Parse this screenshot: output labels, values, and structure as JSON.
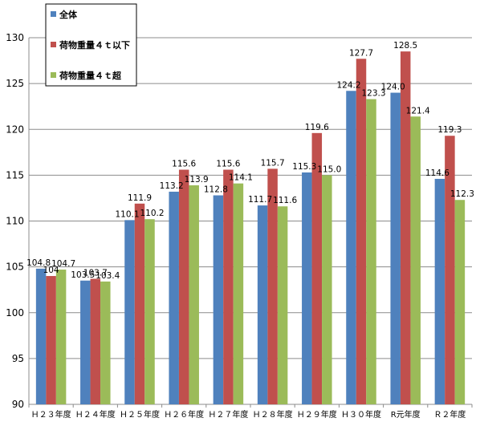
{
  "chart_data": {
    "type": "bar",
    "title": "",
    "xlabel": "",
    "ylabel": "",
    "ylim": [
      90,
      130
    ],
    "yticks": [
      90,
      95,
      100,
      105,
      110,
      115,
      120,
      125,
      130
    ],
    "grid": true,
    "legend_position": "top-left",
    "categories": [
      "Ｈ２３年度",
      "Ｈ２４年度",
      "Ｈ２５年度",
      "Ｈ２６年度",
      "Ｈ２７年度",
      "Ｈ２８年度",
      "Ｈ２９年度",
      "Ｈ３０年度",
      "R元年度",
      "Ｒ２年度"
    ],
    "series": [
      {
        "name": "全体",
        "color": "#4f81bd",
        "values": [
          104.8,
          103.5,
          110.1,
          113.2,
          112.8,
          111.7,
          115.3,
          124.2,
          124.0,
          114.6
        ]
      },
      {
        "name": "荷物重量４ｔ以下",
        "color": "#c0504d",
        "values": [
          104.0,
          103.7,
          111.9,
          115.6,
          115.6,
          115.7,
          119.6,
          127.7,
          128.5,
          119.3
        ]
      },
      {
        "name": "荷物重量４ｔ超",
        "color": "#9bbb59",
        "values": [
          104.7,
          103.4,
          110.2,
          113.9,
          114.1,
          111.6,
          115.0,
          123.3,
          121.4,
          112.3
        ]
      }
    ],
    "data_labels": [
      [
        "104.8",
        "103.5",
        "110.1",
        "113.2",
        "112.8",
        "111.7",
        "115.3",
        "124.2",
        "124.0",
        "114.6"
      ],
      [
        "104",
        "103.7",
        "111.9",
        "115.6",
        "115.6",
        "115.7",
        "119.6",
        "127.7",
        "128.5",
        "119.3"
      ],
      [
        "104.7",
        "103.4",
        "110.2",
        "113.9",
        "114.1",
        "111.6",
        "115.0",
        "123.3",
        "121.4",
        "112.3"
      ]
    ]
  }
}
